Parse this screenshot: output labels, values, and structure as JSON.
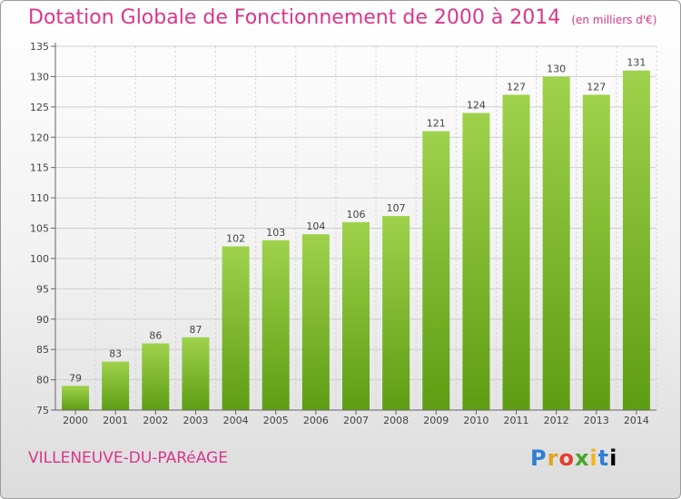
{
  "title": "Dotation Globale de Fonctionnement de 2000 à 2014",
  "unit": "(en milliers d'€)",
  "commune": "VILLENEUVE-DU-PARéAGE",
  "logo": {
    "letters": [
      "P",
      "r",
      "o",
      "x",
      "i",
      "t",
      "i"
    ]
  },
  "colors": {
    "title": "#d9368b",
    "bar_light": "#9fd24c",
    "bar_dark": "#5e9d13",
    "grid": "#cfcfcf",
    "axis": "#666666"
  },
  "chart_data": {
    "type": "bar",
    "title": "Dotation Globale de Fonctionnement de 2000 à 2014",
    "subtitle": "(en milliers d'€)",
    "xlabel": "",
    "ylabel": "",
    "categories": [
      "2000",
      "2001",
      "2002",
      "2003",
      "2004",
      "2005",
      "2006",
      "2007",
      "2008",
      "2009",
      "2010",
      "2011",
      "2012",
      "2013",
      "2014"
    ],
    "values": [
      79,
      83,
      86,
      87,
      102,
      103,
      104,
      106,
      107,
      121,
      124,
      127,
      130,
      127,
      131
    ],
    "ylim": [
      75,
      135
    ],
    "yticks": [
      75,
      80,
      85,
      90,
      95,
      100,
      105,
      110,
      115,
      120,
      125,
      130,
      135
    ],
    "grid": true,
    "legend": "none"
  }
}
